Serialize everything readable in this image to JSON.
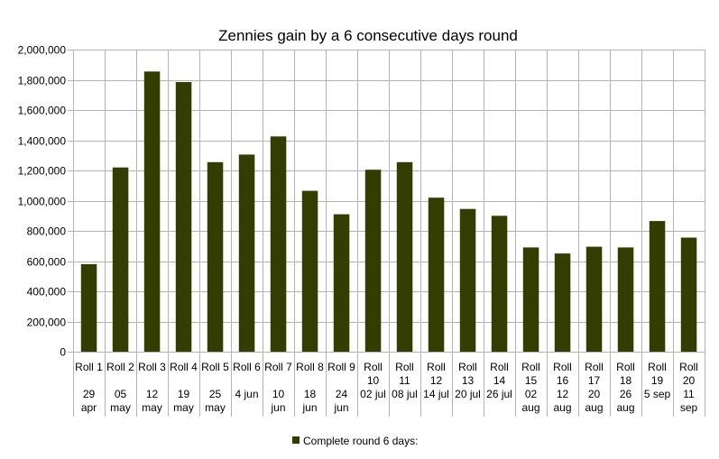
{
  "chart_data": {
    "type": "bar",
    "title": "Zennies gain by a 6 consecutive days round",
    "xlabel": "",
    "ylabel": "",
    "ylim": [
      0,
      2000000
    ],
    "yticks": [
      "0",
      "200,000",
      "400,000",
      "600,000",
      "800,000",
      "1,000,000",
      "1,200,000",
      "1,400,000",
      "1,600,000",
      "1,800,000",
      "2,000,000"
    ],
    "grid": true,
    "legend_position": "bottom",
    "bar_color": "#333d00",
    "categories": [
      [
        "Roll 1",
        "",
        "29",
        "apr"
      ],
      [
        "Roll 2",
        "",
        "05",
        "may"
      ],
      [
        "Roll 3",
        "",
        "12",
        "may"
      ],
      [
        "Roll 4",
        "",
        "19",
        "may"
      ],
      [
        "Roll 5",
        "",
        "25",
        "may"
      ],
      [
        "Roll 6",
        "",
        "4 jun"
      ],
      [
        "Roll 7",
        "",
        "10",
        "jun"
      ],
      [
        "Roll 8",
        "",
        "18",
        "jun"
      ],
      [
        "Roll 9",
        "",
        "24",
        "jun"
      ],
      [
        "Roll",
        "10",
        "02 jul"
      ],
      [
        "Roll",
        "11",
        "08 jul"
      ],
      [
        "Roll",
        "12",
        "14 jul"
      ],
      [
        "Roll",
        "13",
        "20 jul"
      ],
      [
        "Roll",
        "14",
        "26 jul"
      ],
      [
        "Roll",
        "15",
        "02",
        "aug"
      ],
      [
        "Roll",
        "16",
        "12",
        "aug"
      ],
      [
        "Roll",
        "17",
        "20",
        "aug"
      ],
      [
        "Roll",
        "18",
        "26",
        "aug"
      ],
      [
        "Roll",
        "19",
        "5 sep"
      ],
      [
        "Roll",
        "20",
        "11",
        "sep"
      ]
    ],
    "series": [
      {
        "name": "Complete round 6 days:",
        "values": [
          580000,
          1220000,
          1855000,
          1785000,
          1255000,
          1305000,
          1425000,
          1065000,
          910000,
          1205000,
          1255000,
          1020000,
          945000,
          900000,
          690000,
          650000,
          695000,
          690000,
          865000,
          755000
        ]
      }
    ]
  }
}
